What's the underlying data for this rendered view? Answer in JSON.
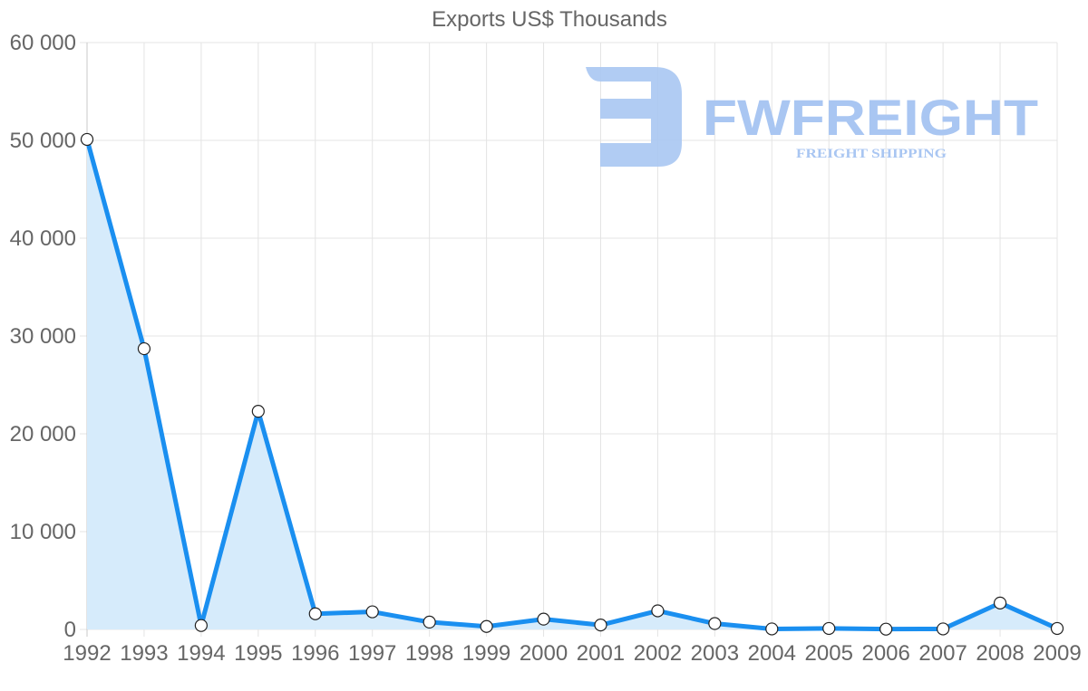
{
  "chart_data": {
    "type": "line",
    "title": "Exports US$ Thousands",
    "xlabel": "",
    "ylabel": "",
    "categories": [
      "1992",
      "1993",
      "1994",
      "1995",
      "1996",
      "1997",
      "1998",
      "1999",
      "2000",
      "2001",
      "2002",
      "2003",
      "2004",
      "2005",
      "2006",
      "2007",
      "2008",
      "2009"
    ],
    "series": [
      {
        "name": "Exports US$ Thousands",
        "values": [
          50100,
          28700,
          400,
          22300,
          1600,
          1800,
          750,
          300,
          1050,
          450,
          1900,
          600,
          50,
          100,
          30,
          50,
          2700,
          100
        ],
        "color": "#1a8ff0",
        "fill": "#d6ebfb"
      }
    ],
    "ylim": [
      0,
      60000
    ],
    "yticks": [
      0,
      10000,
      20000,
      30000,
      40000,
      50000,
      60000
    ],
    "ytick_labels": [
      "0",
      "10 000",
      "20 000",
      "30 000",
      "40 000",
      "50 000",
      "60 000"
    ],
    "grid": true,
    "legend": "none"
  },
  "watermark": {
    "brand": "FWFREIGHT",
    "tagline": "FREIGHT SHIPPING",
    "color": "#a9c6f2"
  }
}
